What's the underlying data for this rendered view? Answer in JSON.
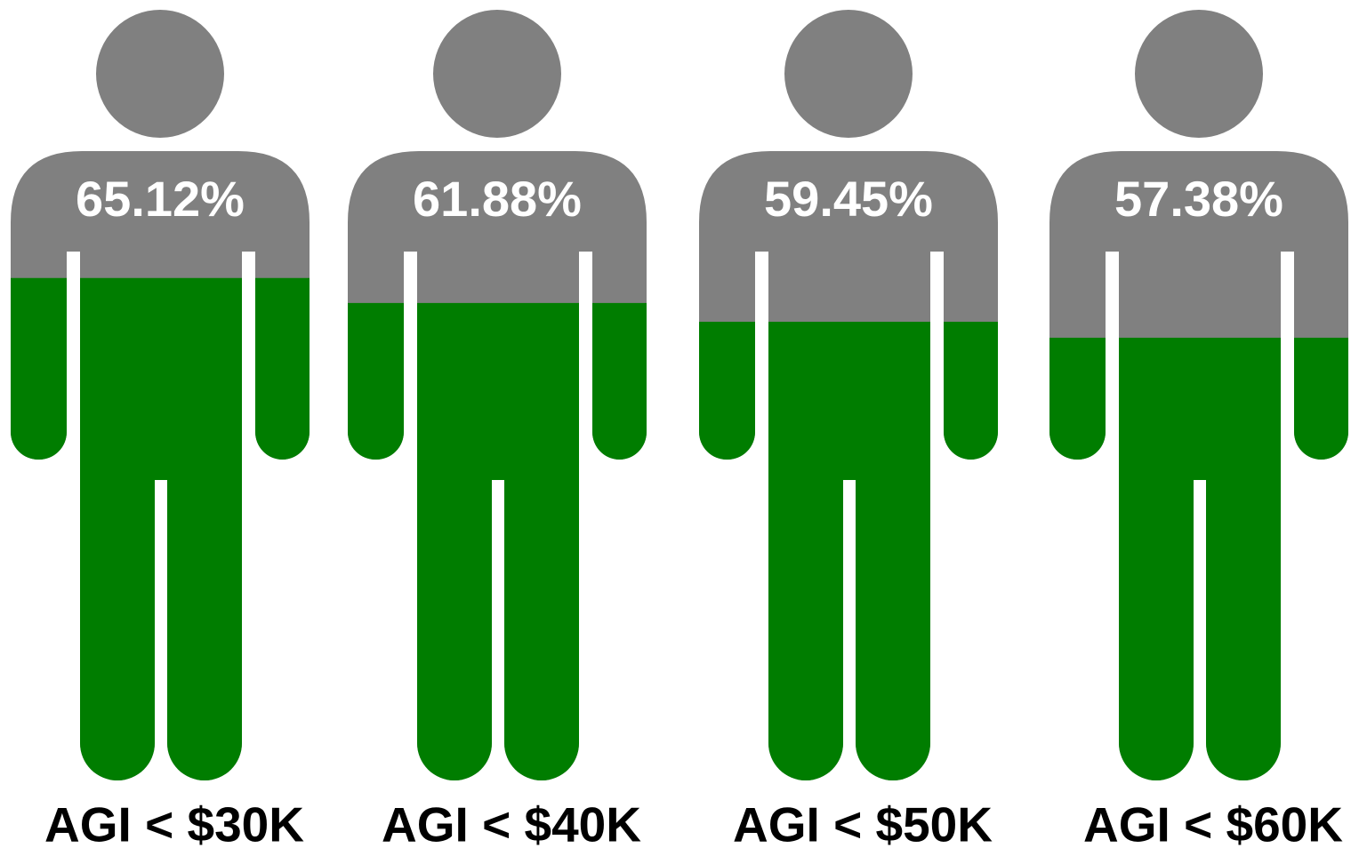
{
  "chart_data": {
    "type": "pictogram",
    "categories": [
      "AGI < $30K",
      "AGI < $40K",
      "AGI < $50K",
      "AGI < $60K"
    ],
    "values": [
      65.12,
      61.88,
      59.45,
      57.38
    ],
    "value_labels": [
      "65.12%",
      "61.88%",
      "59.45%",
      "57.38%"
    ],
    "ylim": [
      0,
      100
    ],
    "color": "#007d00",
    "base_color": "#808080"
  }
}
